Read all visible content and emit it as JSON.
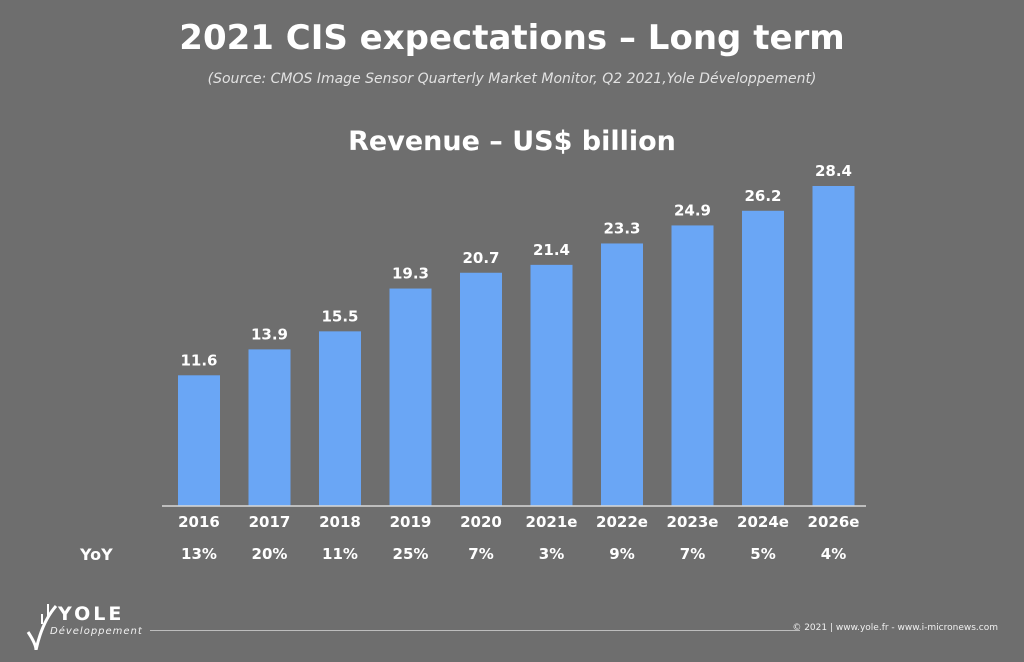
{
  "header": {
    "title": "2021 CIS expectations – Long term",
    "source": "(Source: CMOS Image Sensor Quarterly Market Monitor, Q2 2021,Yole Développement)"
  },
  "chart_data": {
    "type": "bar",
    "title": "Revenue – US$ billion",
    "categories": [
      "2016",
      "2017",
      "2018",
      "2019",
      "2020",
      "2021e",
      "2022e",
      "2023e",
      "2024e",
      "2026e"
    ],
    "series": [
      {
        "values": [
          11.6,
          13.9,
          15.5,
          19.3,
          20.7,
          21.4,
          23.3,
          24.9,
          26.2,
          28.4
        ]
      }
    ],
    "value_labels": [
      "11.6",
      "13.9",
      "15.5",
      "19.3",
      "20.7",
      "21.4",
      "23.3",
      "24.9",
      "26.2",
      "28.4"
    ],
    "yoy_label": "YoY",
    "yoy": [
      "13%",
      "20%",
      "11%",
      "25%",
      "7%",
      "3%",
      "9%",
      "7%",
      "5%",
      "4%"
    ],
    "ylim": [
      0,
      30
    ],
    "grid": false,
    "bar_color": "#6aa6f5",
    "background": "#6e6e6e"
  },
  "footer": {
    "logo_word": "YOLE",
    "logo_sub": "Développement",
    "copyright": "© 2021 | www.yole.fr - www.i-micronews.com"
  }
}
